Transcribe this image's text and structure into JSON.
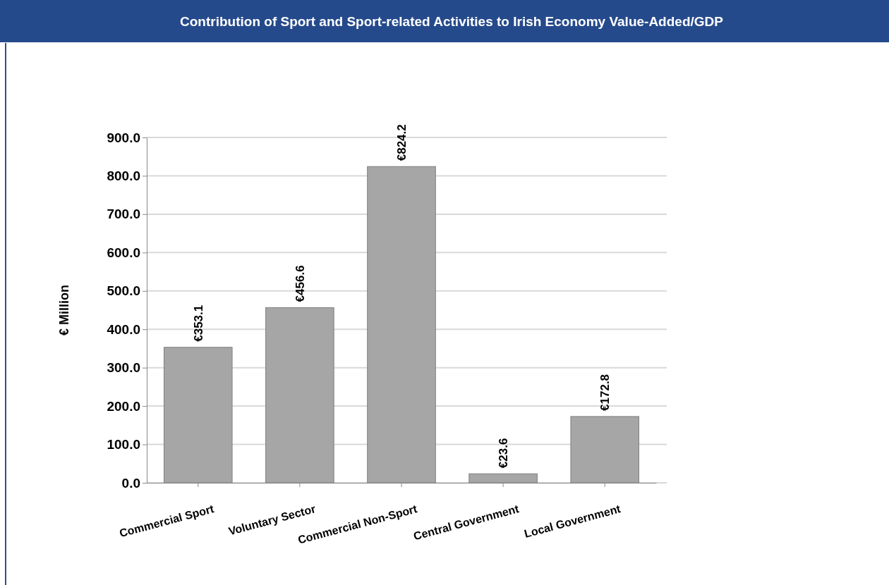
{
  "chart_data": {
    "type": "bar",
    "title": "Contribution of Sport and Sport-related Activities to Irish Economy Value-Added/GDP",
    "ylabel": "€ Million",
    "categories": [
      "Commercial Sport",
      "Voluntary Sector",
      "Commercial Non-Sport",
      "Central Government",
      "Local Government"
    ],
    "values": [
      353.1,
      456.6,
      824.2,
      23.6,
      172.8
    ],
    "value_labels": [
      "€353.1",
      "€456.6",
      "€824.2",
      "€23.6",
      "€172.8"
    ],
    "color": "#a6a6a6",
    "ylim": [
      0,
      900
    ],
    "yticks": [
      {
        "value": 0,
        "label": "0.0"
      },
      {
        "value": 100,
        "label": "100.0"
      },
      {
        "value": 200,
        "label": "200.0"
      },
      {
        "value": 300,
        "label": "300.0"
      },
      {
        "value": 400,
        "label": "400.0"
      },
      {
        "value": 500,
        "label": "500.0"
      },
      {
        "value": 600,
        "label": "600.0"
      },
      {
        "value": 700,
        "label": "700.0"
      },
      {
        "value": 800,
        "label": "800.0"
      },
      {
        "value": 900,
        "label": "900.0"
      }
    ],
    "grid": "y"
  }
}
